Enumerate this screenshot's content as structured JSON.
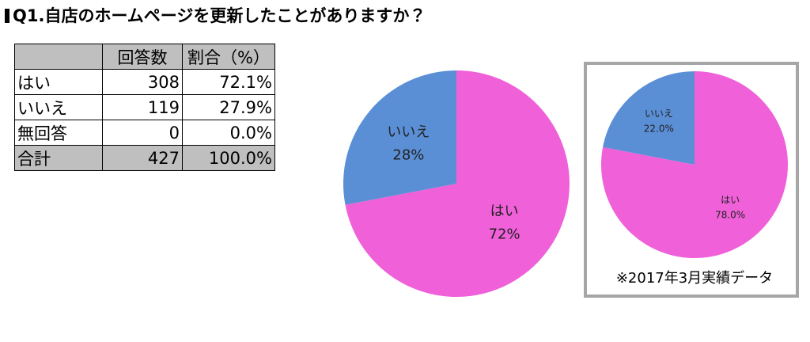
{
  "title": "Q1.自店のホームページを更新したことがありますか？",
  "table": {
    "header": [
      "回答数",
      "割合（%）"
    ],
    "rows": [
      [
        "はい",
        "308",
        "72.1%"
      ],
      [
        "いいえ",
        "119",
        "27.9%"
      ],
      [
        "無回答",
        "0",
        "0.0%"
      ],
      [
        "合計",
        "427",
        "100.0%"
      ]
    ]
  },
  "chart_data": [
    {
      "type": "pie",
      "categories": [
        "はい",
        "いいえ"
      ],
      "values": [
        72,
        28
      ],
      "value_labels": [
        "72%",
        "28%"
      ],
      "colors": [
        "#ef60d9",
        "#5a8fd6"
      ]
    },
    {
      "type": "pie",
      "caption": "※2017年3月実績データ",
      "categories": [
        "はい",
        "いいえ"
      ],
      "values": [
        78,
        22
      ],
      "value_labels": [
        "78.0%",
        "22.0%"
      ],
      "colors": [
        "#ef60d9",
        "#5a8fd6"
      ]
    }
  ]
}
